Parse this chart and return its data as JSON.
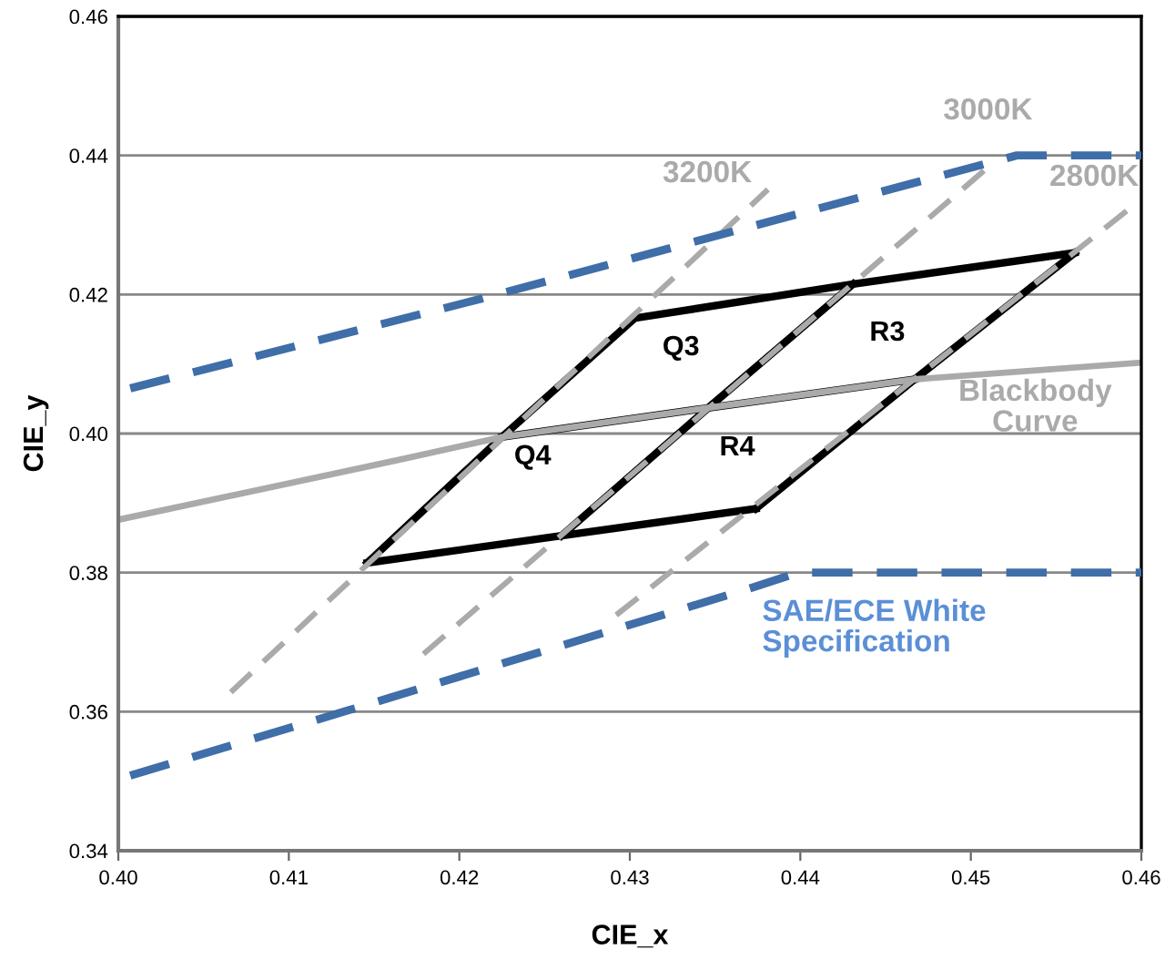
{
  "chart_data": {
    "type": "line",
    "xlabel": "CIE_x",
    "ylabel": "CIE_y",
    "xlim": [
      0.4,
      0.46
    ],
    "ylim": [
      0.34,
      0.46
    ],
    "xticks": [
      {
        "value": 0.4,
        "label": "0.40"
      },
      0.41,
      0.42,
      0.43,
      0.44,
      0.45,
      {
        "value": 0.46,
        "label": "0.46"
      }
    ],
    "yticks": [
      0.34,
      0.36,
      0.38,
      {
        "value": 0.4,
        "label": "0.40"
      },
      0.42,
      0.44,
      0.46
    ],
    "grid": "y",
    "legend": false,
    "line_style": "solid",
    "series": [
      {
        "color": "#000000",
        "x": [
          0.4303,
          0.4431,
          0.4561
        ],
        "values": [
          0.4166,
          0.4215,
          0.426
        ]
      },
      {
        "color": "#000000",
        "x": [
          0.4225,
          0.4346,
          0.4467
        ],
        "values": [
          0.3995,
          0.4037,
          0.4078
        ]
      },
      {
        "color": "#000000",
        "x": [
          0.4146,
          0.426,
          0.4374
        ],
        "values": [
          0.3814,
          0.3853,
          0.3892
        ]
      },
      {
        "color": "#000000",
        "x": [
          0.4146,
          0.4225,
          0.4303
        ],
        "values": [
          0.3814,
          0.3995,
          0.4166
        ]
      },
      {
        "color": "#000000",
        "x": [
          0.426,
          0.4346,
          0.4431
        ],
        "values": [
          0.3853,
          0.4037,
          0.4215
        ]
      },
      {
        "color": "#000000",
        "x": [
          0.4374,
          0.4467,
          0.4561
        ],
        "values": [
          0.3892,
          0.4078,
          0.426
        ]
      },
      {
        "name": "3200K",
        "color": "#aaaaaa",
        "line_style": "dashed",
        "x": [
          0.4066,
          0.4381
        ],
        "values": [
          0.3628,
          0.4351
        ]
      },
      {
        "name": "3000K",
        "color": "#aaaaaa",
        "line_style": "dashed",
        "x": [
          0.4179,
          0.451
        ],
        "values": [
          0.3683,
          0.4383
        ]
      },
      {
        "name": "2800K",
        "color": "#aaaaaa",
        "line_style": "dashed",
        "x": [
          0.4292,
          0.4599
        ],
        "values": [
          0.3739,
          0.4335
        ]
      },
      {
        "name": "Blackbody\nCurve",
        "color": "#aaaaaa",
        "x": [
          0.4,
          0.417,
          0.4225,
          0.4346,
          0.4467,
          0.46
        ],
        "values": [
          0.3876,
          0.3965,
          0.3995,
          0.4037,
          0.4078,
          0.4102
        ]
      },
      {
        "color": "#3f6ea8",
        "line_style": "dashed",
        "x": [
          0.4007,
          0.4213,
          0.4527,
          0.46
        ],
        "values": [
          0.4065,
          0.4194,
          0.44,
          0.44
        ]
      },
      {
        "name": "SAE/ECE White\nSpecification",
        "color": "#3f6ea8",
        "line_style": "dashed",
        "x": [
          0.4007,
          0.4135,
          0.437,
          0.4399,
          0.46
        ],
        "values": [
          0.3508,
          0.3602,
          0.3777,
          0.38,
          0.38
        ]
      }
    ],
    "annotations": [
      "Q3",
      "R3",
      "Q4",
      "R4"
    ]
  }
}
